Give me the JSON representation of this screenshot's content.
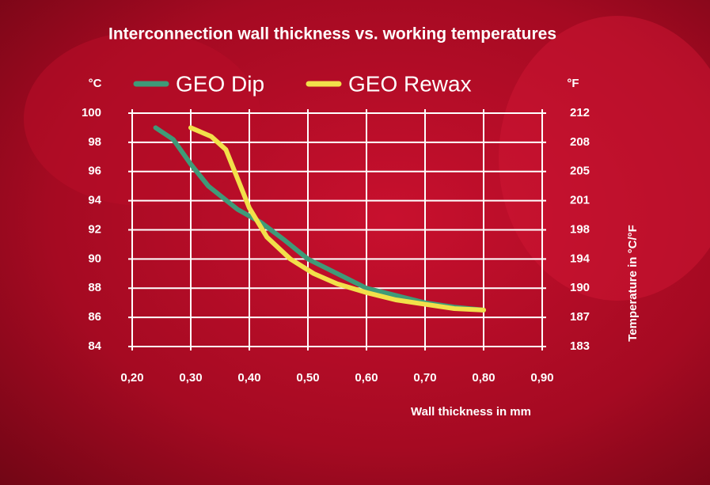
{
  "chart_data": {
    "type": "line",
    "title": "Interconnection wall thickness vs. working temperatures",
    "xlabel": "Wall thickness in mm",
    "ylabel": "°C",
    "y2unit": "°F",
    "y2label": "Temperature in °C/°F",
    "xlim": [
      0.2,
      0.9
    ],
    "xticks": [
      {
        "value": 0.2,
        "label": "0,20"
      },
      {
        "value": 0.3,
        "label": "0,30"
      },
      {
        "value": 0.4,
        "label": "0,40"
      },
      {
        "value": 0.5,
        "label": "0,50"
      },
      {
        "value": 0.6,
        "label": "0,60"
      },
      {
        "value": 0.7,
        "label": "0,70"
      },
      {
        "value": 0.8,
        "label": "0,80"
      },
      {
        "value": 0.9,
        "label": "0,90"
      }
    ],
    "ylim": [
      84,
      100
    ],
    "yticks": [
      84,
      86,
      88,
      90,
      92,
      94,
      96,
      98,
      100
    ],
    "y2lim": [
      183.2,
      212
    ],
    "y2ticks": [
      {
        "value": 183.2,
        "label": "183"
      },
      {
        "value": 186.8,
        "label": "187"
      },
      {
        "value": 190.4,
        "label": "190"
      },
      {
        "value": 194,
        "label": "194"
      },
      {
        "value": 197.6,
        "label": "198"
      },
      {
        "value": 201.2,
        "label": "201"
      },
      {
        "value": 204.8,
        "label": "205"
      },
      {
        "value": 208.4,
        "label": "208"
      },
      {
        "value": 212,
        "label": "212"
      }
    ],
    "grid": true,
    "legend": "top",
    "series": [
      {
        "name": "GEO Dip",
        "color": "#3f9a78",
        "x": [
          0.24,
          0.27,
          0.3,
          0.33,
          0.38,
          0.42,
          0.46,
          0.5,
          0.55,
          0.6,
          0.65,
          0.7,
          0.75,
          0.8
        ],
        "values": [
          99,
          98.2,
          96.5,
          95,
          93.4,
          92.5,
          91.3,
          90,
          89,
          88,
          87.5,
          87,
          86.7,
          86.5
        ]
      },
      {
        "name": "GEO Rewax",
        "color": "#f2e04a",
        "x": [
          0.3,
          0.335,
          0.36,
          0.38,
          0.4,
          0.43,
          0.47,
          0.51,
          0.55,
          0.6,
          0.65,
          0.7,
          0.75,
          0.8
        ],
        "values": [
          99,
          98.4,
          97.5,
          95.5,
          93.5,
          91.5,
          90,
          89,
          88.3,
          87.7,
          87.2,
          86.9,
          86.6,
          86.5
        ]
      }
    ]
  }
}
